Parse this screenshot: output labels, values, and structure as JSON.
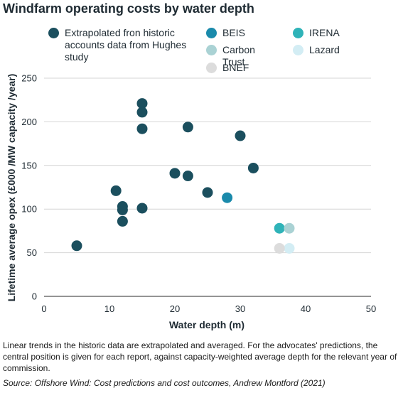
{
  "title": "Windfarm operating costs by water depth",
  "caption": "Linear trends in the historic data are extrapolated and averaged. For the advocates' predictions, the central position is given for each report, against capacity-weighted average depth for the relevant year of commission.",
  "source": "Source: Offshore Wind: Cost predictions and cost outcomes, Andrew Montford (2021)",
  "chart_data": {
    "type": "scatter",
    "title": "Windfarm operating costs by water depth",
    "xlabel": "Water depth (m)",
    "ylabel": "Lifetime average opex (£000 /MW capacity /year)",
    "xlim": [
      0,
      50
    ],
    "ylim": [
      0,
      250
    ],
    "x_ticks": [
      0,
      10,
      20,
      30,
      40,
      50
    ],
    "y_ticks": [
      0,
      50,
      100,
      150,
      200,
      250
    ],
    "grid": "horizontal",
    "legend_position": "top",
    "series": [
      {
        "name": "Extrapolated fron historic accounts data from Hughes study",
        "color": "#1b4f5e",
        "points": [
          {
            "x": 5,
            "y": 58
          },
          {
            "x": 11,
            "y": 121
          },
          {
            "x": 12,
            "y": 103
          },
          {
            "x": 12,
            "y": 99
          },
          {
            "x": 12,
            "y": 86
          },
          {
            "x": 15,
            "y": 221
          },
          {
            "x": 15,
            "y": 211
          },
          {
            "x": 15,
            "y": 192
          },
          {
            "x": 15,
            "y": 101
          },
          {
            "x": 20,
            "y": 141
          },
          {
            "x": 22,
            "y": 194
          },
          {
            "x": 22,
            "y": 138
          },
          {
            "x": 25,
            "y": 119
          },
          {
            "x": 30,
            "y": 184
          },
          {
            "x": 32,
            "y": 147
          }
        ]
      },
      {
        "name": "BEIS",
        "color": "#1a8aab",
        "points": [
          {
            "x": 28,
            "y": 113
          }
        ]
      },
      {
        "name": "IRENA",
        "color": "#2fb3b8",
        "points": [
          {
            "x": 36,
            "y": 78
          }
        ]
      },
      {
        "name": "Carbon Trust",
        "color": "#aad2d4",
        "points": [
          {
            "x": 37.5,
            "y": 78
          }
        ]
      },
      {
        "name": "Lazard",
        "color": "#d3edf4",
        "points": [
          {
            "x": 37.5,
            "y": 55
          }
        ]
      },
      {
        "name": "BNEF",
        "color": "#dcdcdc",
        "points": [
          {
            "x": 36,
            "y": 55
          }
        ]
      }
    ]
  }
}
